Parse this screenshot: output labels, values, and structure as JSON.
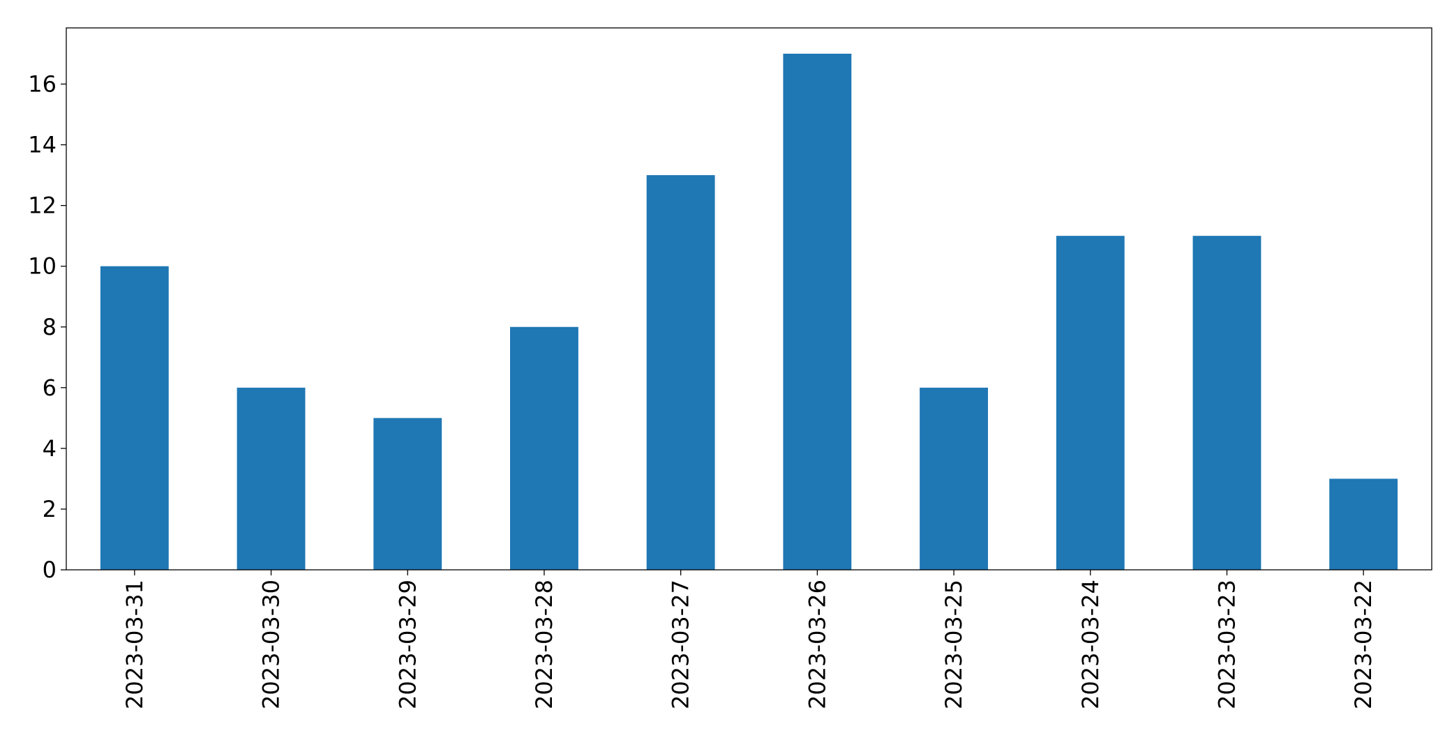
{
  "chart_data": {
    "type": "bar",
    "categories": [
      "2023-03-31",
      "2023-03-30",
      "2023-03-29",
      "2023-03-28",
      "2023-03-27",
      "2023-03-26",
      "2023-03-25",
      "2023-03-24",
      "2023-03-23",
      "2023-03-22"
    ],
    "values": [
      10,
      6,
      5,
      8,
      13,
      17,
      6,
      11,
      11,
      3
    ],
    "color": "#1f77b4",
    "ylim": [
      0,
      17.85
    ],
    "yticks": [
      0,
      2,
      4,
      6,
      8,
      10,
      12,
      14,
      16
    ],
    "grid": false
  }
}
